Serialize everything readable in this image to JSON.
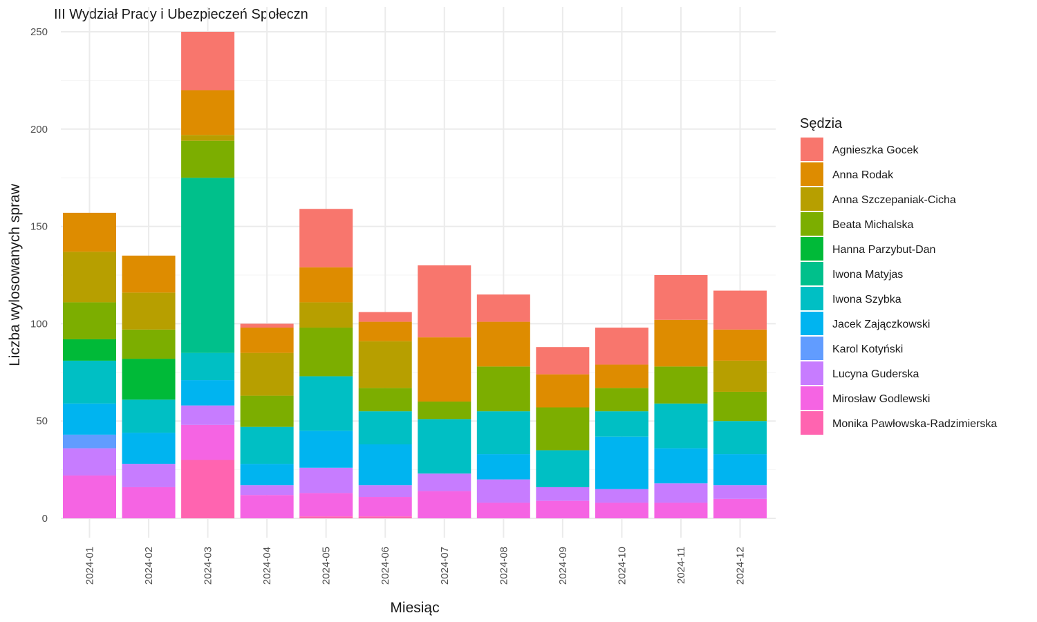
{
  "chart_data": {
    "type": "bar",
    "stacked": true,
    "title": "III Wydział Pracy i Ubezpieczeń Społeczn",
    "xlabel": "Miesiąc",
    "ylabel": "Liczba wylosowanych spraw",
    "ylim": [
      0,
      250
    ],
    "yticks": [
      0,
      50,
      100,
      150,
      200,
      250
    ],
    "grid": true,
    "legend": {
      "title": "Sędzia",
      "position": "right"
    },
    "categories": [
      "2024-01",
      "2024-02",
      "2024-03",
      "2024-04",
      "2024-05",
      "2024-06",
      "2024-07",
      "2024-08",
      "2024-09",
      "2024-10",
      "2024-11",
      "2024-12"
    ],
    "series": [
      {
        "name": "Agnieszka Gocek",
        "color": "#F8766D",
        "values": [
          0,
          0,
          30,
          2,
          30,
          5,
          37,
          14,
          14,
          19,
          23,
          20
        ]
      },
      {
        "name": "Anna Rodak",
        "color": "#DE8C00",
        "values": [
          20,
          19,
          23,
          13,
          18,
          10,
          33,
          23,
          17,
          12,
          24,
          16
        ]
      },
      {
        "name": "Anna Szczepaniak-Cicha",
        "color": "#B79F00",
        "values": [
          26,
          19,
          3,
          22,
          13,
          24,
          0,
          0,
          0,
          0,
          0,
          16
        ]
      },
      {
        "name": "Beata Michalska",
        "color": "#7CAE00",
        "values": [
          19,
          15,
          19,
          16,
          25,
          12,
          9,
          23,
          22,
          12,
          19,
          15
        ]
      },
      {
        "name": "Hanna Parzybut-Dan",
        "color": "#00BA38",
        "values": [
          11,
          21,
          0,
          0,
          0,
          0,
          0,
          0,
          0,
          0,
          0,
          0
        ]
      },
      {
        "name": "Iwona Matyjas",
        "color": "#00C08B",
        "values": [
          0,
          0,
          90,
          0,
          0,
          0,
          0,
          0,
          0,
          0,
          0,
          0
        ]
      },
      {
        "name": "Iwona Szybka",
        "color": "#00BFC4",
        "values": [
          22,
          17,
          14,
          19,
          28,
          17,
          28,
          22,
          19,
          13,
          23,
          17
        ]
      },
      {
        "name": "Jacek Zajączkowski",
        "color": "#00B4F0",
        "values": [
          16,
          16,
          13,
          11,
          19,
          21,
          0,
          13,
          0,
          27,
          18,
          16
        ]
      },
      {
        "name": "Karol Kotyński",
        "color": "#619CFF",
        "values": [
          7,
          0,
          0,
          0,
          0,
          0,
          0,
          0,
          0,
          0,
          0,
          0
        ]
      },
      {
        "name": "Lucyna Guderska",
        "color": "#C77CFF",
        "values": [
          14,
          12,
          10,
          5,
          13,
          6,
          9,
          12,
          7,
          7,
          10,
          7
        ]
      },
      {
        "name": "Mirosław Godlewski",
        "color": "#F564E3",
        "values": [
          22,
          16,
          18,
          12,
          12,
          10,
          14,
          8,
          9,
          8,
          8,
          10
        ]
      },
      {
        "name": "Monika Pawłowska-Radzimierska",
        "color": "#FF64B0",
        "values": [
          0,
          0,
          30,
          0,
          1,
          1,
          0,
          0,
          0,
          0,
          0,
          0
        ]
      }
    ]
  }
}
